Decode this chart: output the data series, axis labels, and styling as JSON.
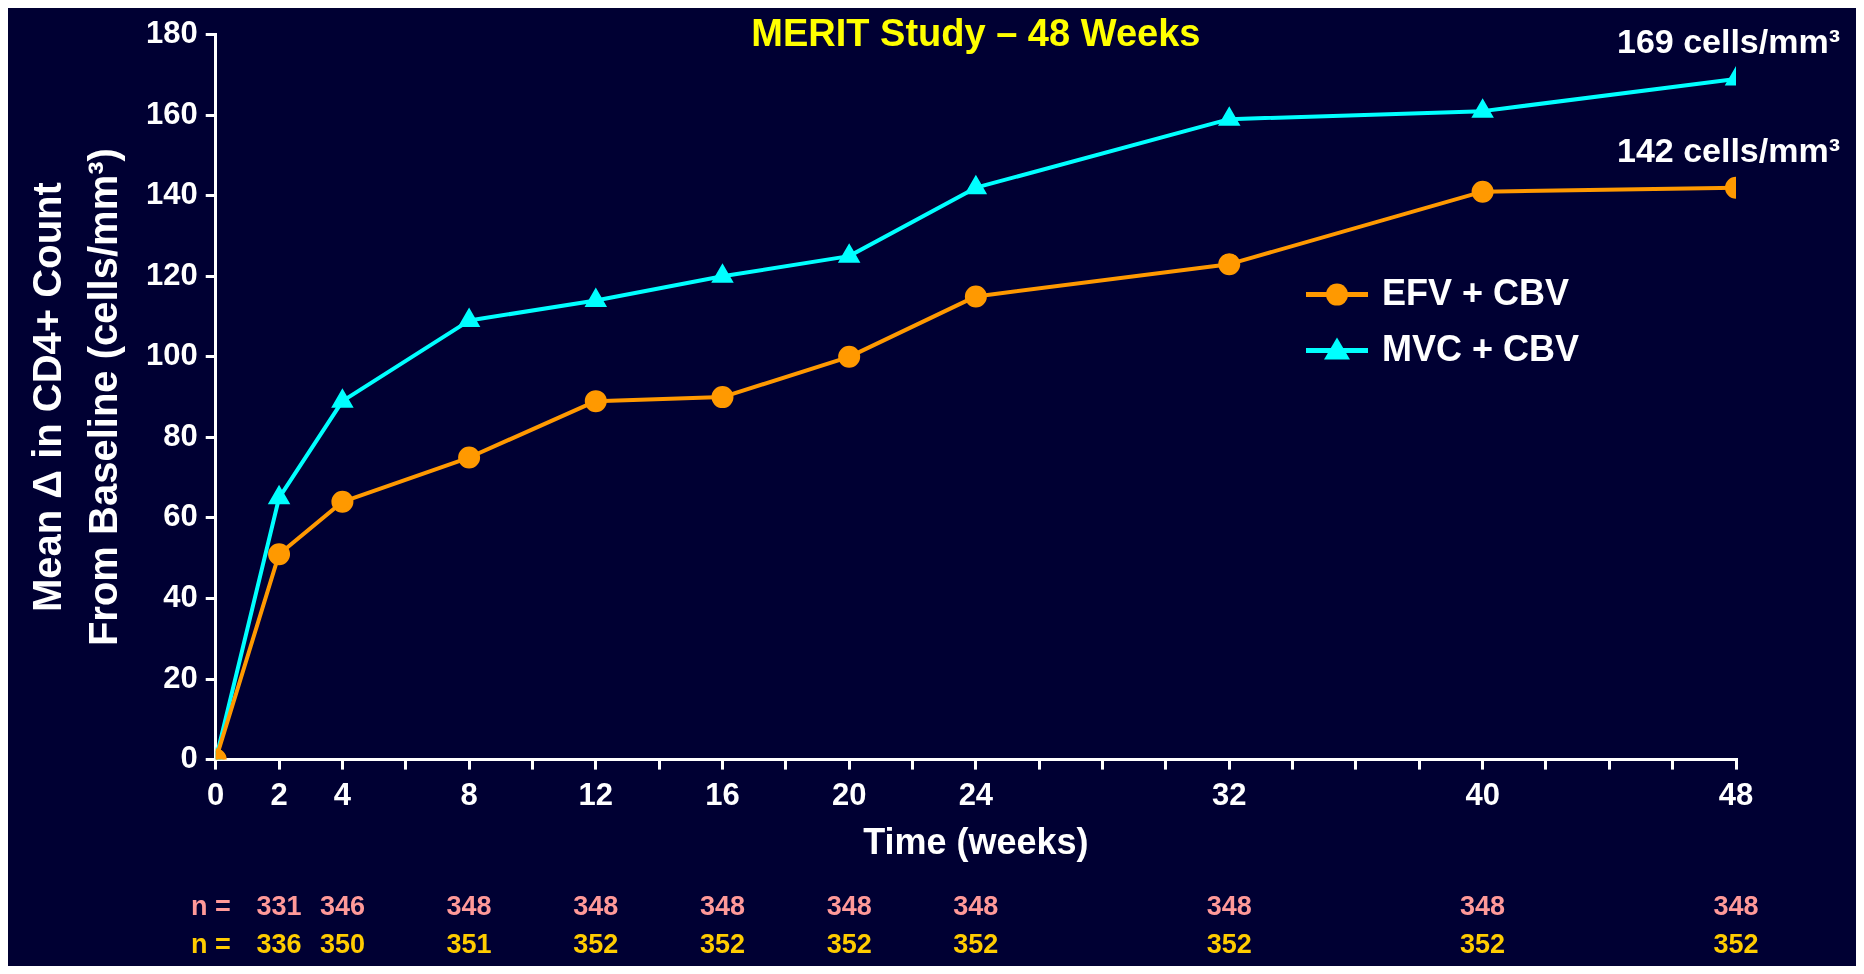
{
  "chart_data": {
    "type": "line",
    "title": "MERIT Study – 48 Weeks",
    "xlabel": "Time (weeks)",
    "ylabel": "Mean Δ in CD4+ Count\nFrom Baseline (cells/mm³)",
    "x": [
      0,
      2,
      4,
      8,
      12,
      16,
      20,
      24,
      32,
      40,
      48
    ],
    "series": [
      {
        "name": "EFV + CBV",
        "color": "#ff9900",
        "marker": "circle",
        "values": [
          0,
          51,
          64,
          75,
          89,
          90,
          100,
          115,
          123,
          141,
          142
        ]
      },
      {
        "name": "MVC + CBV",
        "color": "#00ffff",
        "marker": "triangle",
        "values": [
          0,
          65,
          89,
          109,
          114,
          120,
          125,
          142,
          159,
          161,
          169
        ]
      }
    ],
    "xlim": [
      0,
      48
    ],
    "xticks": [
      0,
      2,
      4,
      {
        "value": 6,
        "label": null
      },
      8,
      {
        "value": 10,
        "label": null
      },
      12,
      {
        "value": 14,
        "label": null
      },
      16,
      {
        "value": 18,
        "label": null
      },
      20,
      {
        "value": 22,
        "label": null
      },
      24,
      {
        "value": 26,
        "label": null
      },
      {
        "value": 28,
        "label": null
      },
      {
        "value": 30,
        "label": null
      },
      32,
      {
        "value": 34,
        "label": null
      },
      {
        "value": 36,
        "label": null
      },
      {
        "value": 38,
        "label": null
      },
      40,
      {
        "value": 42,
        "label": null
      },
      {
        "value": 44,
        "label": null
      },
      {
        "value": 46,
        "label": null
      },
      48
    ],
    "ylim": [
      0,
      180
    ],
    "yticks": [
      0,
      20,
      40,
      60,
      80,
      100,
      120,
      140,
      160,
      180
    ],
    "grid": false,
    "legend": "right",
    "line_style": "solid",
    "annotations": [
      {
        "text": "169 cells/mm³",
        "x": 48,
        "y": 169
      },
      {
        "text": "142 cells/mm³",
        "x": 48,
        "y": 142
      },
      "n =",
      "331",
      "346",
      "348",
      "348",
      "348",
      "348",
      "348",
      "348",
      "348",
      "348",
      "n =",
      "336",
      "350",
      "351",
      "352",
      "352",
      "352",
      "352",
      "352",
      "352",
      "352"
    ]
  }
}
